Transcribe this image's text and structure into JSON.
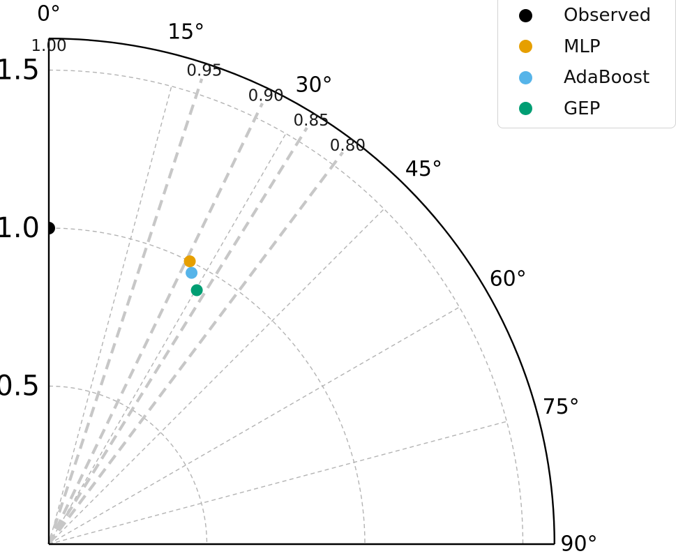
{
  "chart_data": {
    "type": "scatter",
    "subtype": "taylor-diagram-quarter-polar",
    "title": "",
    "background": "#ffffff",
    "spine_color": "#000000",
    "radial_axis": {
      "max": 1.6,
      "ticks": [
        {
          "value": 0.5,
          "label": "0.5"
        },
        {
          "value": 1.0,
          "label": "1.0"
        },
        {
          "value": 1.5,
          "label": "1.5"
        }
      ]
    },
    "angular_axis": {
      "unit": "degrees",
      "ticks": [
        {
          "deg": 0,
          "label": "0°"
        },
        {
          "deg": 15,
          "label": "15°"
        },
        {
          "deg": 30,
          "label": "30°"
        },
        {
          "deg": 45,
          "label": "45°"
        },
        {
          "deg": 60,
          "label": "60°"
        },
        {
          "deg": 75,
          "label": "75°"
        },
        {
          "deg": 90,
          "label": "90°"
        }
      ]
    },
    "correlation_labels": [
      {
        "value": 1.0,
        "label": "1.00"
      },
      {
        "value": 0.95,
        "label": "0.95"
      },
      {
        "value": 0.9,
        "label": "0.90"
      },
      {
        "value": 0.85,
        "label": "0.85"
      },
      {
        "value": 0.8,
        "label": "0.80"
      }
    ],
    "correlation_gridlines": [
      0.95,
      0.9,
      0.85,
      0.8
    ],
    "grid": {
      "thin_color": "#b3b3b3",
      "thick_color": "#c7c7c7",
      "style": "dashed"
    },
    "series": [
      {
        "name": "Observed",
        "color": "#000000",
        "std_dev": 1.0,
        "correlation": 1.0
      },
      {
        "name": "MLP",
        "color": "#E69F00",
        "std_dev": 1.0,
        "correlation": 0.895
      },
      {
        "name": "AdaBoost",
        "color": "#56B4E9",
        "std_dev": 0.97,
        "correlation": 0.885
      },
      {
        "name": "GEP",
        "color": "#009E73",
        "std_dev": 0.93,
        "correlation": 0.864
      }
    ]
  },
  "legend": {
    "items": [
      {
        "label": "Observed",
        "color": "#000000"
      },
      {
        "label": "MLP",
        "color": "#E69F00"
      },
      {
        "label": "AdaBoost",
        "color": "#56B4E9"
      },
      {
        "label": "GEP",
        "color": "#009E73"
      }
    ]
  }
}
